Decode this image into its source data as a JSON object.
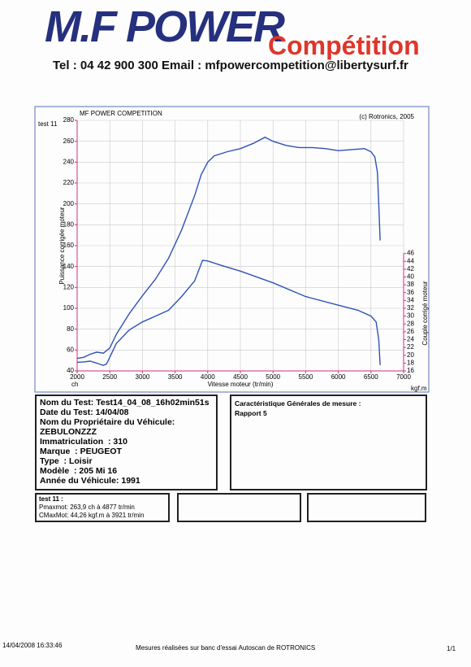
{
  "header": {
    "logo_main": "M.F POWER",
    "logo_sub": "Compétition",
    "contact": "Tel : 04 42 900 300 Email : mfpowercompetition@libertysurf.fr"
  },
  "chart_data": {
    "type": "line",
    "title": "MF POWER COMPETITION",
    "credit": "(c) Rotronics, 2005",
    "test_label": "test 11",
    "xlabel": "Vitesse moteur (tr/min)",
    "ylabel": "Puissance corrigée moteur",
    "y2label": "Couple corrigé moteur",
    "y_unit": "ch",
    "y2_unit": "kgf.m",
    "xlim": [
      2000,
      7000
    ],
    "xticks": [
      2000,
      2500,
      3000,
      3500,
      4000,
      4500,
      5000,
      5500,
      6000,
      6500,
      7000
    ],
    "ylim": [
      40,
      280
    ],
    "yticks": [
      40,
      60,
      80,
      100,
      120,
      140,
      160,
      180,
      200,
      220,
      240,
      260,
      280
    ],
    "y2lim": [
      16,
      80
    ],
    "y2ticks": [
      16,
      18,
      20,
      22,
      24,
      26,
      28,
      30,
      32,
      34,
      36,
      38,
      40,
      42,
      44,
      46
    ],
    "grid": true,
    "series": [
      {
        "color": "#2f52b8",
        "x": [
          2000,
          2100,
          2200,
          2300,
          2400,
          2500,
          2600,
          2800,
          3000,
          3200,
          3400,
          3600,
          3800,
          3900,
          4000,
          4100,
          4300,
          4500,
          4700,
          4877,
          5000,
          5200,
          5400,
          5600,
          5800,
          6000,
          6200,
          6400,
          6500,
          6560,
          6600,
          6620,
          6640
        ],
        "values": [
          52,
          53,
          56,
          58,
          57,
          62,
          75,
          95,
          112,
          128,
          148,
          175,
          208,
          228,
          240,
          246,
          250,
          253,
          258,
          263.9,
          260,
          256,
          254,
          254,
          253,
          251,
          252,
          253,
          250,
          245,
          230,
          200,
          165
        ]
      },
      {
        "axis": "y2",
        "color": "#2f52b8",
        "x": [
          2000,
          2100,
          2200,
          2300,
          2400,
          2450,
          2500,
          2600,
          2800,
          3000,
          3200,
          3400,
          3600,
          3800,
          3921,
          4000,
          4200,
          4500,
          5000,
          5500,
          6000,
          6300,
          6500,
          6580,
          6620,
          6640
        ],
        "values": [
          18.2,
          18.3,
          18.5,
          18,
          17.4,
          17.8,
          19.5,
          23,
          26.5,
          28.5,
          30,
          31.5,
          35,
          39,
          44.26,
          44.1,
          43,
          41.5,
          38.5,
          35,
          32.8,
          31.5,
          30,
          28.5,
          24,
          17.5
        ]
      }
    ]
  },
  "test_info": {
    "lines": [
      "Nom du Test: Test14_04_08_16h02min51s",
      "Date du Test: 14/04/08",
      "Nom du Propriétaire du Véhicule:",
      "ZEBULONZZZ",
      "Immatriculation  : 310",
      "Marque  : PEUGEOT",
      "Type  : Loisir",
      "Modèle  : 205 Mi 16",
      "Année du Véhicule: 1991"
    ]
  },
  "measure": {
    "title": "Caractéristique Générales de mesure :",
    "value": "Rapport 5"
  },
  "results": {
    "title": "test 11 :",
    "lines": [
      "Pmaxmot: 263,9 ch à 4877 tr/min",
      "CMaxMot: 44,26 kgf.m à 3921 tr/min"
    ]
  },
  "footer": {
    "date": "14/04/2008 16:33:46",
    "note": "Mesures réalisées sur banc d'essai Autoscan de ROTRONICS",
    "page": "1/1"
  }
}
